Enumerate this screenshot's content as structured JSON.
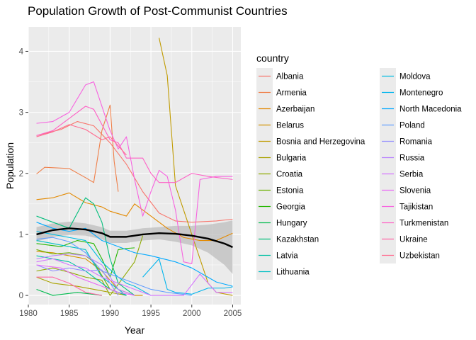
{
  "chart_data": {
    "type": "line",
    "title": "Population Growth of Post-Communist Countries",
    "xlabel": "Year",
    "ylabel": "Population",
    "xlim": [
      1980,
      2006
    ],
    "ylim": [
      -0.15,
      4.4
    ],
    "x_ticks": [
      1980,
      1985,
      1990,
      1995,
      2000,
      2005
    ],
    "y_ticks": [
      0,
      1,
      2,
      3,
      4
    ],
    "grid": true,
    "legend_title": "country",
    "legend_position": "right",
    "series": [
      {
        "name": "Albania",
        "color": "#F8766D",
        "points": [
          [
            1981,
            2.62
          ],
          [
            1984,
            2.72
          ],
          [
            1986,
            2.85
          ],
          [
            1988,
            2.78
          ],
          [
            1990,
            2.5
          ],
          [
            1992,
            2.15
          ],
          [
            1994,
            1.7
          ],
          [
            1996,
            1.35
          ],
          [
            1998,
            1.22
          ],
          [
            2000,
            1.2
          ],
          [
            2003,
            1.22
          ],
          [
            2005,
            1.25
          ]
        ]
      },
      {
        "name": "Armenia",
        "color": "#EF7F49",
        "points": [
          [
            1981,
            1.99
          ],
          [
            1982,
            2.1
          ],
          [
            1985,
            2.08
          ],
          [
            1987,
            1.93
          ],
          [
            1988,
            1.85
          ],
          [
            1989,
            2.7
          ],
          [
            1990,
            3.12
          ],
          [
            1990.5,
            2.2
          ],
          [
            1991,
            1.7
          ]
        ]
      },
      {
        "name": "Azerbaijan",
        "color": "#E38900",
        "points": [
          [
            1981,
            1.57
          ],
          [
            1983,
            1.6
          ],
          [
            1985,
            1.68
          ],
          [
            1987,
            1.52
          ],
          [
            1989,
            1.45
          ],
          [
            1990,
            1.38
          ],
          [
            1992,
            1.3
          ],
          [
            1993,
            1.5
          ],
          [
            1995,
            1.3
          ],
          [
            1997,
            1.1
          ],
          [
            1999,
            0.95
          ],
          [
            2001,
            0.9
          ],
          [
            2003,
            0.9
          ],
          [
            2005,
            1.02
          ]
        ]
      },
      {
        "name": "Belarus",
        "color": "#D39200",
        "points": [
          [
            1981,
            0.72
          ],
          [
            1983,
            0.7
          ],
          [
            1985,
            0.65
          ],
          [
            1987,
            0.6
          ],
          [
            1989,
            0.4
          ],
          [
            1990,
            0.25
          ],
          [
            1991,
            0.1
          ],
          [
            1993,
            0.0
          ],
          [
            1994,
            0.0
          ]
        ]
      },
      {
        "name": "Bosnia and Herzegovina",
        "color": "#C09B00",
        "points": [
          [
            1996,
            4.22
          ],
          [
            1997,
            3.6
          ],
          [
            1998,
            1.8
          ],
          [
            2000,
            1.0
          ],
          [
            2002,
            0.2
          ],
          [
            2003,
            0.05
          ],
          [
            2005,
            0.0
          ]
        ]
      },
      {
        "name": "Bulgaria",
        "color": "#AAA200",
        "points": [
          [
            1981,
            0.3
          ],
          [
            1983,
            0.2
          ],
          [
            1986,
            0.15
          ],
          [
            1988,
            0.1
          ],
          [
            1990,
            0.05
          ],
          [
            1992,
            0.0
          ]
        ]
      },
      {
        "name": "Croatia",
        "color": "#8FAA00",
        "points": [
          [
            1981,
            0.4
          ],
          [
            1983,
            0.45
          ],
          [
            1985,
            0.38
          ],
          [
            1987,
            0.3
          ],
          [
            1989,
            0.25
          ],
          [
            1990,
            0.0
          ],
          [
            1993,
            0.55
          ],
          [
            1994,
            0.98
          ]
        ]
      },
      {
        "name": "Estonia",
        "color": "#6BB100",
        "points": [
          [
            1981,
            0.75
          ],
          [
            1983,
            0.68
          ],
          [
            1985,
            0.7
          ],
          [
            1987,
            0.65
          ],
          [
            1988,
            0.55
          ],
          [
            1990,
            0.1
          ],
          [
            1992,
            0.0
          ]
        ]
      },
      {
        "name": "Georgia",
        "color": "#24B700",
        "points": [
          [
            1981,
            0.85
          ],
          [
            1984,
            0.8
          ],
          [
            1986,
            0.9
          ],
          [
            1988,
            0.85
          ],
          [
            1989,
            0.6
          ],
          [
            1990,
            0.3
          ],
          [
            1991,
            0.75
          ],
          [
            1992,
            0.77
          ],
          [
            1993,
            0.78
          ]
        ]
      },
      {
        "name": "Hungary",
        "color": "#00BB4E",
        "points": [
          [
            1981,
            0.1
          ],
          [
            1983,
            0.0
          ],
          [
            1986,
            0.05
          ],
          [
            1989,
            0.0
          ]
        ]
      },
      {
        "name": "Kazakhstan",
        "color": "#00BD7A",
        "points": [
          [
            1981,
            1.3
          ],
          [
            1983,
            1.2
          ],
          [
            1985,
            1.1
          ],
          [
            1986,
            1.35
          ],
          [
            1987,
            1.6
          ],
          [
            1988,
            1.5
          ],
          [
            1989,
            1.2
          ],
          [
            1990,
            0.6
          ],
          [
            1991,
            0.2
          ],
          [
            1992,
            0.1
          ],
          [
            1993,
            0.0
          ]
        ]
      },
      {
        "name": "Latvia",
        "color": "#00C0A3",
        "points": [
          [
            1981,
            0.65
          ],
          [
            1983,
            0.6
          ],
          [
            1985,
            0.55
          ],
          [
            1987,
            0.4
          ],
          [
            1989,
            0.2
          ],
          [
            1990,
            0.1
          ],
          [
            1992,
            0.0
          ]
        ]
      },
      {
        "name": "Lithuania",
        "color": "#00BFC4",
        "points": [
          [
            1981,
            0.9
          ],
          [
            1983,
            0.85
          ],
          [
            1985,
            0.8
          ],
          [
            1987,
            0.75
          ],
          [
            1989,
            0.3
          ],
          [
            1990,
            0.2
          ],
          [
            1992,
            0.0
          ]
        ]
      },
      {
        "name": "Moldova",
        "color": "#00BCE2",
        "points": [
          [
            1981,
            1.05
          ],
          [
            1983,
            1.0
          ],
          [
            1985,
            0.95
          ],
          [
            1987,
            0.9
          ],
          [
            1989,
            0.55
          ],
          [
            1991,
            0.3
          ],
          [
            1992,
            0.2
          ],
          [
            1993,
            0.15
          ],
          [
            1995,
            0.0
          ]
        ]
      },
      {
        "name": "Montenegro",
        "color": "#00B5ED",
        "points": [
          [
            1994,
            0.3
          ],
          [
            1996,
            0.6
          ],
          [
            1997,
            0.1
          ],
          [
            1998,
            0.05
          ],
          [
            2000,
            0.02
          ],
          [
            2002,
            0.12
          ],
          [
            2004,
            0.12
          ],
          [
            2005,
            0.14
          ]
        ]
      },
      {
        "name": "North Macedonia",
        "color": "#00A9FF",
        "points": [
          [
            1981,
            1.2
          ],
          [
            1983,
            1.1
          ],
          [
            1985,
            1.05
          ],
          [
            1987,
            1.1
          ],
          [
            1989,
            0.9
          ],
          [
            1991,
            0.8
          ],
          [
            1993,
            0.7
          ],
          [
            1995,
            0.65
          ],
          [
            1998,
            0.55
          ],
          [
            2000,
            0.45
          ],
          [
            2003,
            0.22
          ],
          [
            2005,
            0.15
          ]
        ]
      },
      {
        "name": "Poland",
        "color": "#629EFF",
        "points": [
          [
            1981,
            0.92
          ],
          [
            1983,
            0.95
          ],
          [
            1985,
            0.88
          ],
          [
            1987,
            0.7
          ],
          [
            1989,
            0.4
          ],
          [
            1991,
            0.3
          ],
          [
            1993,
            0.2
          ],
          [
            1995,
            0.1
          ],
          [
            1997,
            0.05
          ],
          [
            2000,
            0.0
          ]
        ]
      },
      {
        "name": "Romania",
        "color": "#9590FF",
        "points": [
          [
            1981,
            0.5
          ],
          [
            1983,
            0.4
          ],
          [
            1985,
            0.45
          ],
          [
            1987,
            0.4
          ],
          [
            1989,
            0.42
          ],
          [
            1990,
            0.2
          ],
          [
            1991,
            0.0
          ]
        ]
      },
      {
        "name": "Russia",
        "color": "#B983FF",
        "points": [
          [
            1981,
            0.6
          ],
          [
            1983,
            0.65
          ],
          [
            1985,
            0.68
          ],
          [
            1987,
            0.65
          ],
          [
            1989,
            0.5
          ],
          [
            1991,
            0.1
          ],
          [
            1993,
            0.0
          ]
        ]
      },
      {
        "name": "Serbia",
        "color": "#D575FE",
        "points": [
          [
            1981,
            0.55
          ],
          [
            1983,
            0.6
          ],
          [
            1985,
            0.5
          ],
          [
            1987,
            0.45
          ],
          [
            1989,
            0.3
          ],
          [
            1991,
            0.2
          ],
          [
            1993,
            0.1
          ],
          [
            1995,
            0.0
          ],
          [
            1999,
            0.0
          ],
          [
            2001,
            0.35
          ],
          [
            2003,
            0.05
          ],
          [
            2005,
            0.05
          ]
        ]
      },
      {
        "name": "Slovenia",
        "color": "#E96AF6",
        "points": [
          [
            1981,
            0.5
          ],
          [
            1984,
            0.45
          ],
          [
            1986,
            0.3
          ],
          [
            1989,
            0.15
          ],
          [
            1991,
            0.05
          ],
          [
            1993,
            0.0
          ]
        ]
      },
      {
        "name": "Tajikistan",
        "color": "#F763E0",
        "points": [
          [
            1981,
            2.82
          ],
          [
            1983,
            2.85
          ],
          [
            1985,
            3.0
          ],
          [
            1987,
            3.45
          ],
          [
            1988,
            3.5
          ],
          [
            1990,
            2.7
          ],
          [
            1991,
            2.4
          ],
          [
            1992,
            2.6
          ],
          [
            1993,
            1.9
          ],
          [
            1994,
            1.3
          ],
          [
            1995,
            1.7
          ],
          [
            1996,
            2.05
          ],
          [
            1997,
            1.95
          ],
          [
            1998,
            1.4
          ],
          [
            1999,
            0.55
          ],
          [
            2000,
            0.52
          ],
          [
            2001,
            1.9
          ],
          [
            2003,
            1.95
          ],
          [
            2005,
            1.95
          ]
        ]
      },
      {
        "name": "Turkmenistan",
        "color": "#FE61C6",
        "points": [
          [
            1981,
            2.62
          ],
          [
            1983,
            2.7
          ],
          [
            1985,
            2.9
          ],
          [
            1987,
            3.1
          ],
          [
            1988,
            3.05
          ],
          [
            1990,
            2.55
          ],
          [
            1991,
            2.5
          ],
          [
            1992,
            2.25
          ],
          [
            1994,
            2.25
          ],
          [
            1995,
            2.0
          ],
          [
            1996,
            1.85
          ],
          [
            1998,
            1.85
          ],
          [
            2000,
            2.0
          ],
          [
            2002,
            1.95
          ],
          [
            2005,
            1.9
          ]
        ]
      },
      {
        "name": "Ukraine",
        "color": "#FF67A6",
        "points": [
          [
            1981,
            0.3
          ],
          [
            1983,
            0.3
          ],
          [
            1985,
            0.2
          ],
          [
            1987,
            0.05
          ],
          [
            1989,
            0.0
          ]
        ]
      },
      {
        "name": "Uzbekistan",
        "color": "#FF6C90",
        "points": [
          [
            1981,
            2.6
          ],
          [
            1983,
            2.68
          ],
          [
            1985,
            2.8
          ],
          [
            1987,
            2.72
          ],
          [
            1989,
            2.55
          ],
          [
            1990,
            2.6
          ],
          [
            1991,
            2.45
          ],
          [
            1992,
            2.3
          ]
        ]
      }
    ],
    "smooth": {
      "color": "#000000",
      "band_color": "#BEBEBE",
      "points": [
        [
          1981,
          1.0
        ],
        [
          1983,
          1.07
        ],
        [
          1985,
          1.1
        ],
        [
          1987,
          1.08
        ],
        [
          1989,
          1.02
        ],
        [
          1990,
          0.96
        ],
        [
          1992,
          0.96
        ],
        [
          1994,
          1.0
        ],
        [
          1996,
          1.02
        ],
        [
          1998,
          1.01
        ],
        [
          2000,
          0.98
        ],
        [
          2002,
          0.93
        ],
        [
          2004,
          0.85
        ],
        [
          2005,
          0.79
        ]
      ],
      "lower": [
        [
          1981,
          0.88
        ],
        [
          1983,
          0.96
        ],
        [
          1985,
          0.99
        ],
        [
          1987,
          0.98
        ],
        [
          1989,
          0.92
        ],
        [
          1990,
          0.86
        ],
        [
          1992,
          0.86
        ],
        [
          1994,
          0.9
        ],
        [
          1996,
          0.92
        ],
        [
          1998,
          0.88
        ],
        [
          2000,
          0.82
        ],
        [
          2002,
          0.7
        ],
        [
          2004,
          0.5
        ],
        [
          2005,
          0.35
        ]
      ],
      "upper": [
        [
          1981,
          1.12
        ],
        [
          1983,
          1.18
        ],
        [
          1985,
          1.21
        ],
        [
          1987,
          1.18
        ],
        [
          1989,
          1.12
        ],
        [
          1990,
          1.06
        ],
        [
          1992,
          1.06
        ],
        [
          1994,
          1.1
        ],
        [
          1996,
          1.12
        ],
        [
          1998,
          1.14
        ],
        [
          2000,
          1.14
        ],
        [
          2002,
          1.16
        ],
        [
          2004,
          1.2
        ],
        [
          2005,
          1.23
        ]
      ]
    }
  }
}
